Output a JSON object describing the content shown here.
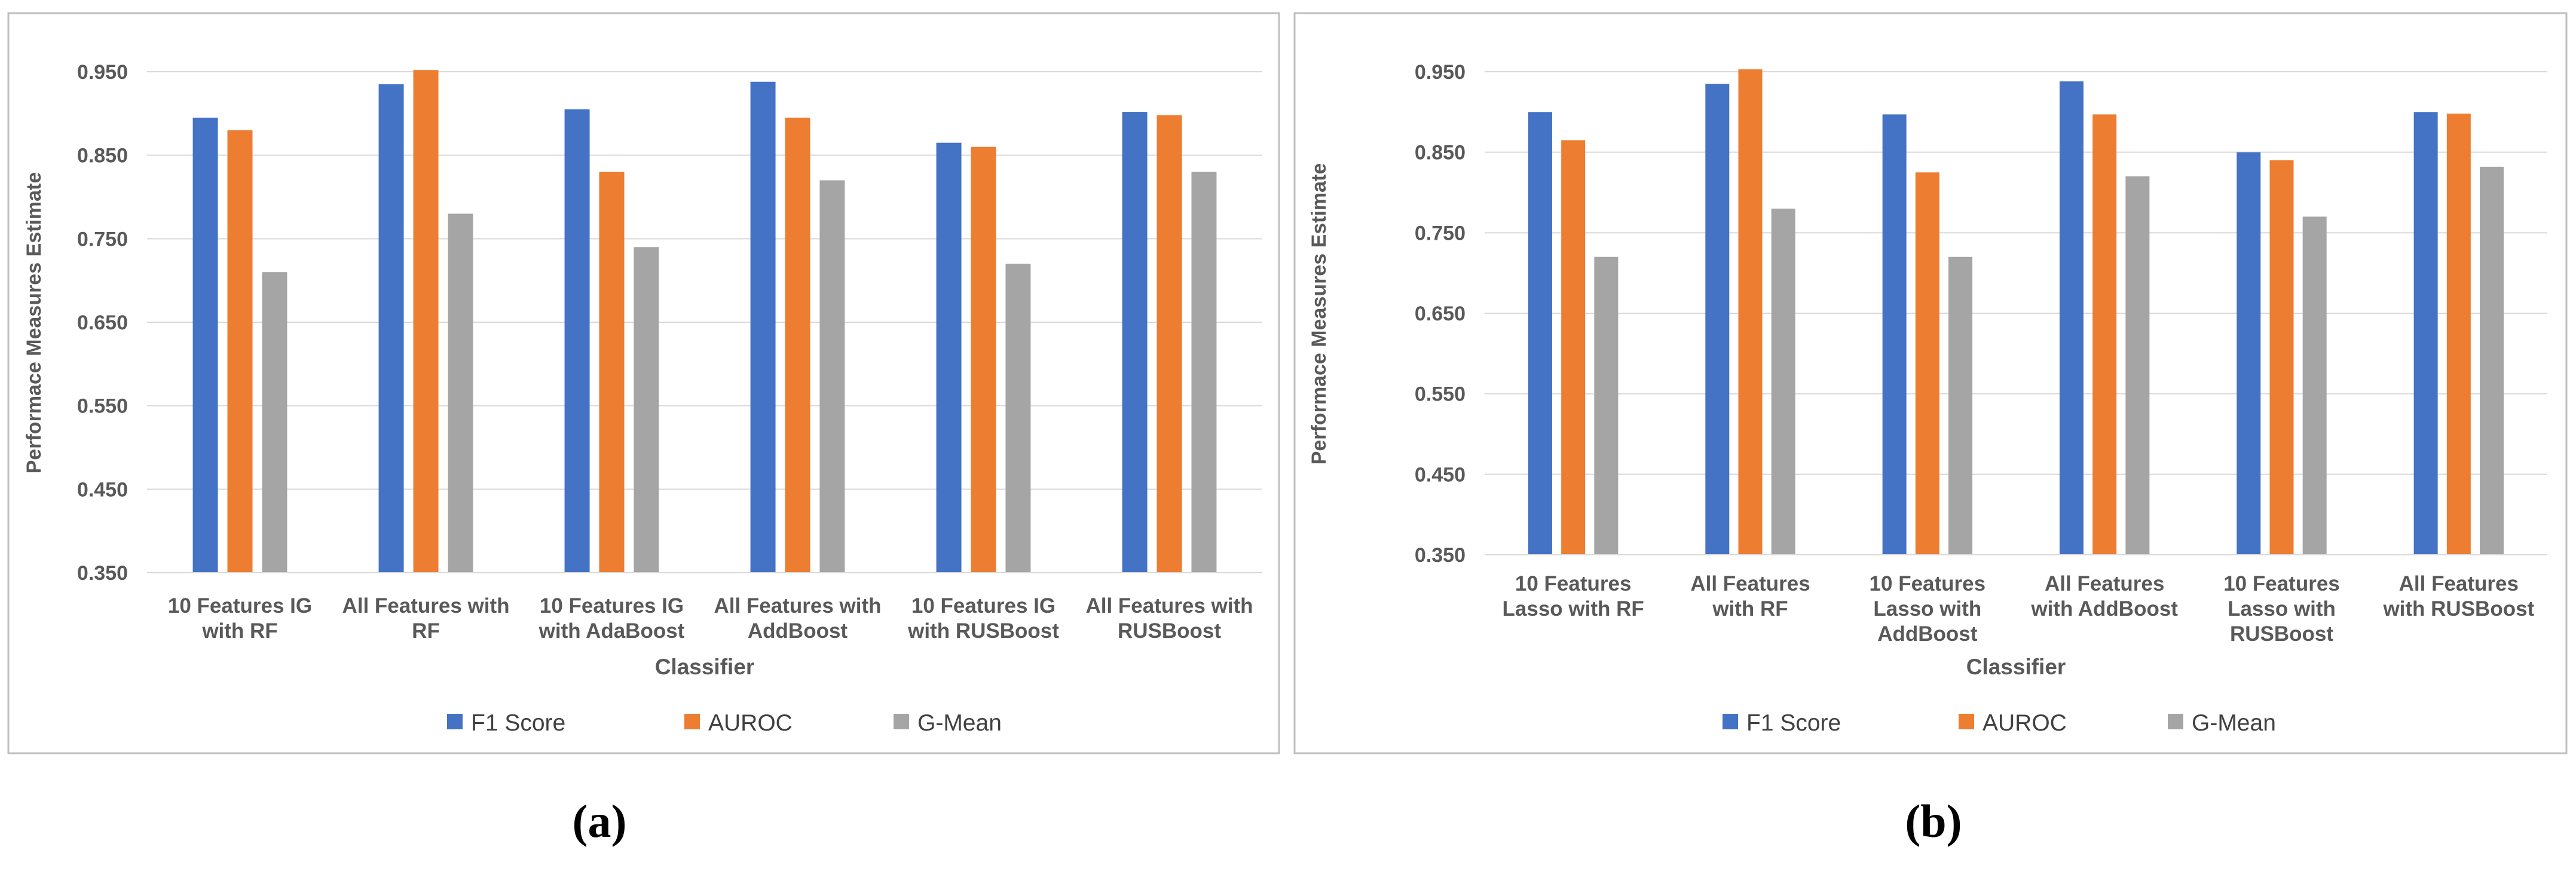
{
  "figure": {
    "captions": [
      "(a)",
      "(b)"
    ]
  },
  "colors": {
    "series": [
      "#4472C4",
      "#ED7D31",
      "#A5A5A5"
    ],
    "grid": "#D9D9D9",
    "text": "#595959",
    "border": "#BFBFBF"
  },
  "chart_data": [
    {
      "type": "bar",
      "title": "",
      "xlabel": "Classifier",
      "ylabel": "Performace Measures Estimate",
      "ylim": [
        0.35,
        0.95
      ],
      "yticks": [
        "0.950",
        "0.850",
        "0.750",
        "0.650",
        "0.550",
        "0.450",
        "0.350"
      ],
      "grid": true,
      "legend": "bottom",
      "categories": [
        [
          "10 Features IG",
          "with RF"
        ],
        [
          "All Features with",
          "RF"
        ],
        [
          "10 Features IG",
          "with AdaBoost"
        ],
        [
          "All Features with",
          "AddBoost"
        ],
        [
          "10 Features IG",
          "with RUSBoost"
        ],
        [
          "All Features with",
          "RUSBoost"
        ]
      ],
      "series": [
        {
          "name": "F1 Score",
          "values": [
            0.895,
            0.935,
            0.905,
            0.938,
            0.865,
            0.902
          ]
        },
        {
          "name": "AUROC",
          "values": [
            0.88,
            0.952,
            0.83,
            0.895,
            0.86,
            0.898
          ]
        },
        {
          "name": "G-Mean",
          "values": [
            0.71,
            0.78,
            0.74,
            0.82,
            0.72,
            0.83
          ]
        }
      ]
    },
    {
      "type": "bar",
      "title": "",
      "xlabel": "Classifier",
      "ylabel": "Performace Measures Estimate",
      "ylim": [
        0.35,
        0.95
      ],
      "yticks": [
        "0.950",
        "0.850",
        "0.750",
        "0.650",
        "0.550",
        "0.450",
        "0.350"
      ],
      "grid": true,
      "legend": "bottom",
      "categories": [
        [
          "10 Features",
          "Lasso with RF"
        ],
        [
          "All Features",
          "with RF"
        ],
        [
          "10 Features",
          "Lasso with",
          "AddBoost"
        ],
        [
          "All Features",
          "with AddBoost"
        ],
        [
          "10 Features",
          "Lasso with",
          "RUSBoost"
        ],
        [
          "All Features",
          "with RUSBoost"
        ]
      ],
      "series": [
        {
          "name": "F1 Score",
          "values": [
            0.9,
            0.935,
            0.897,
            0.938,
            0.85,
            0.9
          ]
        },
        {
          "name": "AUROC",
          "values": [
            0.865,
            0.953,
            0.825,
            0.897,
            0.84,
            0.898
          ]
        },
        {
          "name": "G-Mean",
          "values": [
            0.72,
            0.78,
            0.72,
            0.82,
            0.77,
            0.832
          ]
        }
      ]
    }
  ]
}
